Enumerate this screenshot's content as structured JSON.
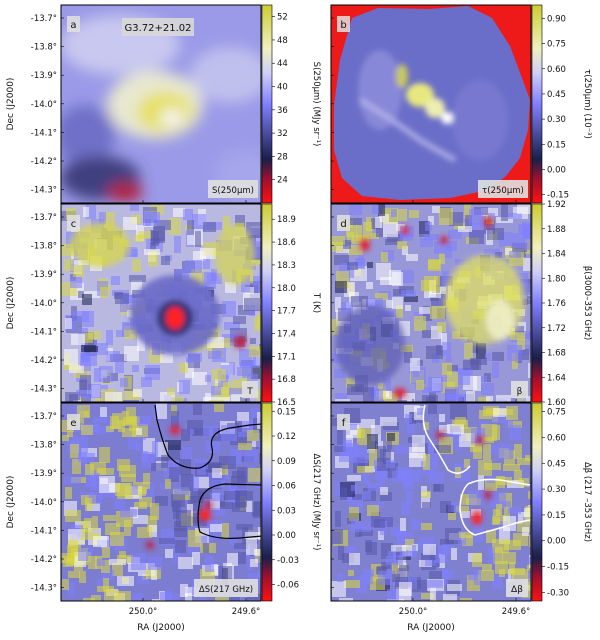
{
  "figure": {
    "xlabel": "RA (J2000)",
    "ylabel": "Dec (J2000)",
    "x_ticks": [
      "250.0°",
      "249.6°"
    ],
    "y_ticks": [
      "-13.7°",
      "-13.8°",
      "-13.9°",
      "-14.0°",
      "-14.1°",
      "-14.2°",
      "-14.3°"
    ]
  },
  "chart_data": [
    {
      "type": "heatmap",
      "panel": "a",
      "title": "G3.72+21.02",
      "inset_label": "S(250μm)",
      "colorbar_label": "S(250μm) (MJy sr⁻¹)",
      "colorbar_ticks": [
        "52",
        "48",
        "44",
        "40",
        "36",
        "32",
        "28",
        "24"
      ],
      "colorbar_range": [
        20,
        54
      ],
      "colormap": [
        "#ff1010",
        "#1a1f4a",
        "#8080ff",
        "#ffffff",
        "#d8d840"
      ]
    },
    {
      "type": "heatmap",
      "panel": "b",
      "inset_label": "τ(250μm)",
      "colorbar_label": "τ(250μm) (10⁻³)",
      "colorbar_ticks": [
        "0.90",
        "0.75",
        "0.60",
        "0.45",
        "0.30",
        "0.15",
        "0.00",
        "-0.15"
      ],
      "colorbar_range": [
        -0.2,
        0.98
      ],
      "colormap": [
        "#ff1010",
        "#1a1f4a",
        "#8080ff",
        "#ffffff",
        "#d8d840"
      ]
    },
    {
      "type": "heatmap",
      "panel": "c",
      "inset_label": "T",
      "colorbar_label": "T (K)",
      "colorbar_ticks": [
        "18.9",
        "18.6",
        "18.3",
        "18.0",
        "17.7",
        "17.4",
        "17.1",
        "16.8",
        "16.5"
      ],
      "colorbar_range": [
        16.5,
        19.1
      ],
      "colormap": [
        "#ff1010",
        "#1a1f4a",
        "#8080ff",
        "#ffffff",
        "#d8d840"
      ]
    },
    {
      "type": "heatmap",
      "panel": "d",
      "inset_label": "β",
      "colorbar_label": "β(3000–353 GHz)",
      "colorbar_ticks": [
        "1.92",
        "1.88",
        "1.84",
        "1.80",
        "1.76",
        "1.72",
        "1.68",
        "1.64",
        "1.60"
      ],
      "colorbar_range": [
        1.6,
        1.92
      ],
      "colormap": [
        "#ff1010",
        "#1a1f4a",
        "#8080ff",
        "#ffffff",
        "#d8d840"
      ]
    },
    {
      "type": "heatmap",
      "panel": "e",
      "inset_label": "ΔS(217 GHz)",
      "colorbar_label": "ΔS(217 GHz) (MJy sr⁻¹)",
      "colorbar_ticks": [
        "0.15",
        "0.12",
        "0.09",
        "0.06",
        "0.03",
        "0.00",
        "-0.03",
        "-0.06"
      ],
      "colorbar_range": [
        -0.08,
        0.16
      ],
      "colormap": [
        "#ff1010",
        "#1a1f4a",
        "#8080ff",
        "#ffffff",
        "#d8d840"
      ]
    },
    {
      "type": "heatmap",
      "panel": "f",
      "inset_label": "Δβ",
      "colorbar_label": "Δβ (217 –353 GHz)",
      "colorbar_ticks": [
        "0.75",
        "0.60",
        "0.45",
        "0.30",
        "0.15",
        "0.00",
        "-0.15",
        "-0.30"
      ],
      "colorbar_range": [
        -0.35,
        0.8
      ],
      "colormap": [
        "#ff1010",
        "#1a1f4a",
        "#8080ff",
        "#ffffff",
        "#d8d840"
      ]
    }
  ]
}
